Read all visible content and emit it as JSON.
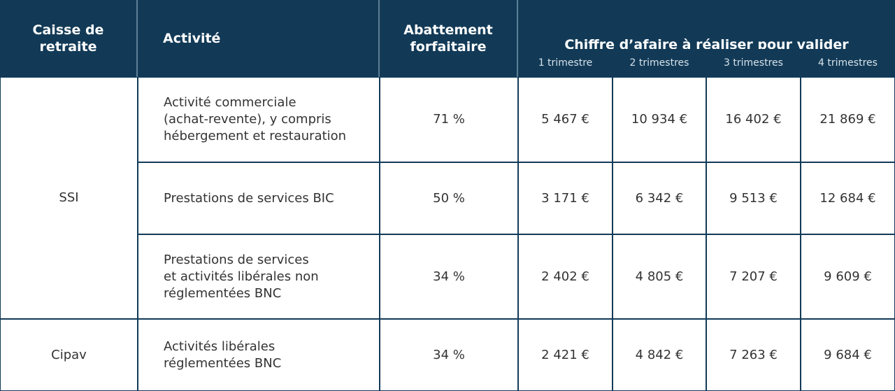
{
  "header": {
    "fund": [
      "Caisse de",
      "retraite"
    ],
    "activity": [
      "Activité"
    ],
    "allowance": [
      "Abattement",
      "forfaitaire"
    ],
    "turnover": {
      "title": "Chiffre d’afaire à réaliser pour valider",
      "quarters": [
        "1 trimestre",
        "2 trimestres",
        "3 trimestres",
        "4 trimestres"
      ]
    }
  },
  "table": {
    "groups": [
      {
        "fund": "SSI",
        "rows": [
          {
            "activity": [
              "Activité commerciale",
              "(achat-revente), y compris",
              "hébergement et restauration"
            ],
            "allowance": "71 %",
            "amounts": [
              "5 467 €",
              "10 934 €",
              "16 402 €",
              "21 869 €"
            ]
          },
          {
            "activity": [
              "Prestations de services BIC"
            ],
            "allowance": "50 %",
            "amounts": [
              "3 171 €",
              "6 342 €",
              "9 513 €",
              "12 684 €"
            ]
          },
          {
            "activity": [
              "Prestations de services",
              "et activités libérales non",
              "réglementées BNC"
            ],
            "allowance": "34 %",
            "amounts": [
              "2 402 €",
              "4 805 €",
              "7 207 €",
              "9 609 €"
            ]
          }
        ]
      },
      {
        "fund": "Cipav",
        "rows": [
          {
            "activity": [
              "Activités libérales",
              "réglementées BNC"
            ],
            "allowance": "34 %",
            "amounts": [
              "2 421 €",
              "4 842 €",
              "7 263 €",
              "9 684 €"
            ]
          }
        ]
      }
    ]
  }
}
